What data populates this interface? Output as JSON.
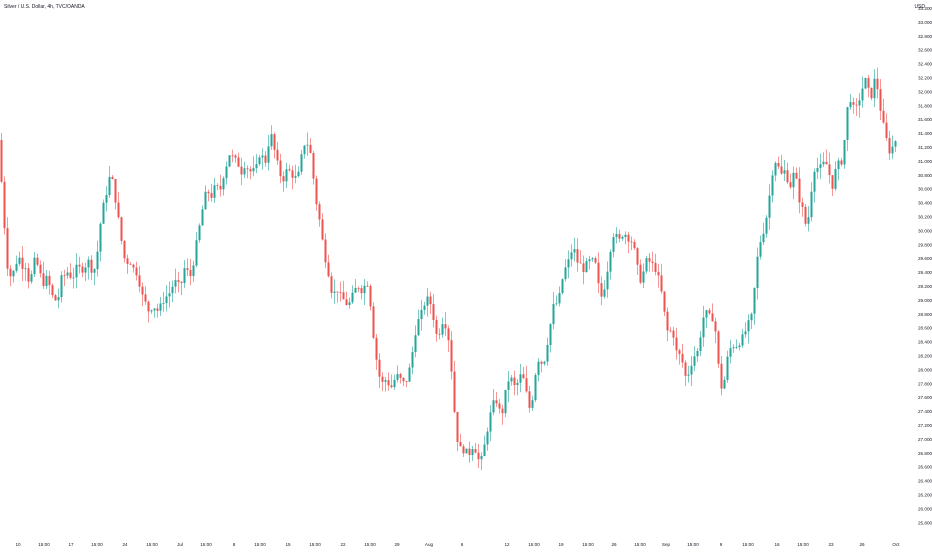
{
  "chart_data": {
    "type": "candlestick",
    "title": "Silver / U.S. Dollar, 4h, TVC/OANDA",
    "y_unit": "USD",
    "ylim": [
      26.0,
      33.2
    ],
    "yticks": [
      "33.200",
      "33.000",
      "32.800",
      "32.600",
      "32.400",
      "32.200",
      "32.000",
      "31.800",
      "31.600",
      "31.400",
      "31.200",
      "31.000",
      "30.800",
      "30.600",
      "30.400",
      "30.200",
      "30.000",
      "29.800",
      "29.600",
      "29.400",
      "29.200",
      "29.000",
      "28.800",
      "28.600",
      "28.400",
      "28.200",
      "28.000",
      "27.800",
      "27.600",
      "27.400",
      "27.200",
      "27.000",
      "26.800",
      "26.600",
      "26.400",
      "26.200",
      "26.000",
      "25.800"
    ],
    "xticks": [
      "10",
      "15:00",
      "17",
      "15:00",
      "24",
      "15:00",
      "Jul",
      "15:00",
      "8",
      "15:00",
      "15",
      "15:00",
      "22",
      "15:00",
      "29",
      "Aug",
      "6",
      "12",
      "15:00",
      "19",
      "15:00",
      "26",
      "15:00",
      "Sep",
      "15:00",
      "9",
      "15:00",
      "16",
      "15:00",
      "23",
      "26",
      "Oct"
    ],
    "grid": false,
    "legend": "none",
    "colors": {
      "up": "#26a69a",
      "down": "#ef5350",
      "axis_text": "#131722"
    },
    "close_path": [
      [
        0,
        31.3
      ],
      [
        2,
        30.5
      ],
      [
        6,
        29.8
      ],
      [
        9,
        29.2
      ],
      [
        12,
        29.5
      ],
      [
        15,
        29.3
      ],
      [
        18,
        29.8
      ],
      [
        21,
        29.4
      ],
      [
        24,
        29.6
      ],
      [
        27,
        29.4
      ],
      [
        30,
        29.2
      ],
      [
        33,
        29.5
      ],
      [
        36,
        29.6
      ],
      [
        39,
        29.4
      ],
      [
        42,
        29.3
      ],
      [
        45,
        29.2
      ],
      [
        48,
        29.4
      ],
      [
        51,
        29.0
      ],
      [
        54,
        29.1
      ],
      [
        57,
        28.9
      ],
      [
        60,
        29.2
      ],
      [
        63,
        29.4
      ],
      [
        66,
        29.3
      ],
      [
        69,
        29.5
      ],
      [
        72,
        29.2
      ],
      [
        75,
        29.5
      ],
      [
        78,
        29.4
      ],
      [
        81,
        29.5
      ],
      [
        84,
        29.4
      ],
      [
        87,
        29.6
      ],
      [
        90,
        29.5
      ],
      [
        93,
        29.4
      ],
      [
        96,
        29.5
      ],
      [
        99,
        29.9
      ],
      [
        102,
        30.3
      ],
      [
        105,
        30.4
      ],
      [
        108,
        30.7
      ],
      [
        111,
        30.8
      ],
      [
        114,
        30.6
      ],
      [
        117,
        30.3
      ],
      [
        120,
        30.0
      ],
      [
        123,
        29.7
      ],
      [
        126,
        29.5
      ],
      [
        129,
        29.6
      ],
      [
        132,
        29.5
      ],
      [
        135,
        29.4
      ],
      [
        138,
        29.4
      ],
      [
        141,
        29.1
      ],
      [
        144,
        29.0
      ],
      [
        147,
        28.9
      ],
      [
        150,
        28.8
      ],
      [
        153,
        29.0
      ],
      [
        156,
        28.8
      ],
      [
        159,
        28.9
      ],
      [
        162,
        28.9
      ],
      [
        165,
        29.1
      ],
      [
        168,
        29.0
      ],
      [
        171,
        29.2
      ],
      [
        174,
        29.2
      ],
      [
        177,
        29.3
      ],
      [
        180,
        29.1
      ],
      [
        183,
        29.4
      ],
      [
        186,
        29.5
      ],
      [
        189,
        29.3
      ],
      [
        192,
        29.4
      ],
      [
        195,
        29.7
      ],
      [
        198,
        29.9
      ],
      [
        201,
        30.2
      ],
      [
        204,
        30.4
      ],
      [
        207,
        30.6
      ],
      [
        210,
        30.5
      ],
      [
        213,
        30.5
      ],
      [
        216,
        30.7
      ],
      [
        219,
        30.5
      ],
      [
        222,
        30.7
      ],
      [
        225,
        30.9
      ],
      [
        228,
        31.0
      ],
      [
        231,
        31.2
      ],
      [
        234,
        30.9
      ],
      [
        237,
        31.1
      ],
      [
        240,
        30.8
      ],
      [
        243,
        30.9
      ],
      [
        246,
        31.0
      ],
      [
        249,
        30.8
      ],
      [
        252,
        30.9
      ],
      [
        255,
        30.8
      ],
      [
        258,
        31.0
      ],
      [
        261,
        31.2
      ],
      [
        264,
        30.9
      ],
      [
        267,
        31.1
      ],
      [
        270,
        31.4
      ],
      [
        273,
        31.3
      ],
      [
        276,
        31.0
      ],
      [
        279,
        30.9
      ],
      [
        282,
        30.7
      ],
      [
        285,
        30.8
      ],
      [
        288,
        30.9
      ],
      [
        291,
        30.8
      ],
      [
        294,
        30.8
      ],
      [
        297,
        30.7
      ],
      [
        300,
        30.9
      ],
      [
        303,
        31.2
      ],
      [
        306,
        31.3
      ],
      [
        309,
        31.2
      ],
      [
        312,
        31.0
      ],
      [
        315,
        30.5
      ],
      [
        318,
        30.3
      ],
      [
        321,
        30.0
      ],
      [
        324,
        29.7
      ],
      [
        327,
        29.5
      ],
      [
        330,
        29.3
      ],
      [
        333,
        29.0
      ],
      [
        336,
        29.2
      ],
      [
        339,
        29.1
      ],
      [
        342,
        29.0
      ],
      [
        345,
        29.0
      ],
      [
        348,
        28.9
      ],
      [
        351,
        29.0
      ],
      [
        354,
        29.1
      ],
      [
        357,
        29.2
      ],
      [
        360,
        29.2
      ],
      [
        363,
        29.1
      ],
      [
        366,
        29.3
      ],
      [
        369,
        29.2
      ],
      [
        372,
        28.7
      ],
      [
        375,
        28.3
      ],
      [
        378,
        28.0
      ],
      [
        381,
        27.8
      ],
      [
        384,
        27.8
      ],
      [
        387,
        27.9
      ],
      [
        390,
        27.7
      ],
      [
        393,
        27.8
      ],
      [
        396,
        27.9
      ],
      [
        399,
        27.9
      ],
      [
        402,
        27.8
      ],
      [
        405,
        27.8
      ],
      [
        408,
        27.9
      ],
      [
        411,
        28.1
      ],
      [
        414,
        28.4
      ],
      [
        417,
        28.7
      ],
      [
        420,
        28.7
      ],
      [
        423,
        28.9
      ],
      [
        426,
        29.0
      ],
      [
        429,
        29.0
      ],
      [
        432,
        28.9
      ],
      [
        435,
        28.6
      ],
      [
        438,
        28.4
      ],
      [
        441,
        28.7
      ],
      [
        444,
        28.7
      ],
      [
        447,
        28.6
      ],
      [
        450,
        28.3
      ],
      [
        453,
        27.7
      ],
      [
        456,
        27.1
      ],
      [
        459,
        26.9
      ],
      [
        462,
        26.8
      ],
      [
        465,
        26.9
      ],
      [
        468,
        26.7
      ],
      [
        471,
        26.9
      ],
      [
        474,
        26.9
      ],
      [
        477,
        26.8
      ],
      [
        480,
        26.6
      ],
      [
        483,
        26.8
      ],
      [
        486,
        27.0
      ],
      [
        489,
        27.3
      ],
      [
        492,
        27.4
      ],
      [
        495,
        27.6
      ],
      [
        498,
        27.5
      ],
      [
        501,
        27.3
      ],
      [
        504,
        27.5
      ],
      [
        507,
        27.8
      ],
      [
        510,
        27.9
      ],
      [
        513,
        27.8
      ],
      [
        516,
        27.7
      ],
      [
        519,
        27.9
      ],
      [
        522,
        27.9
      ],
      [
        525,
        27.8
      ],
      [
        528,
        27.5
      ],
      [
        531,
        27.4
      ],
      [
        534,
        27.8
      ],
      [
        537,
        28.1
      ],
      [
        540,
        28.2
      ],
      [
        543,
        28.0
      ],
      [
        546,
        28.3
      ],
      [
        549,
        28.5
      ],
      [
        552,
        28.8
      ],
      [
        555,
        29.0
      ],
      [
        558,
        28.9
      ],
      [
        561,
        29.2
      ],
      [
        564,
        29.4
      ],
      [
        567,
        29.5
      ],
      [
        570,
        29.6
      ],
      [
        573,
        29.8
      ],
      [
        576,
        29.6
      ],
      [
        579,
        29.5
      ],
      [
        582,
        29.5
      ],
      [
        585,
        29.4
      ],
      [
        588,
        29.6
      ],
      [
        591,
        29.5
      ],
      [
        594,
        29.6
      ],
      [
        597,
        29.4
      ],
      [
        600,
        29.0
      ],
      [
        603,
        29.1
      ],
      [
        606,
        29.3
      ],
      [
        609,
        29.6
      ],
      [
        612,
        29.9
      ],
      [
        615,
        30.0
      ],
      [
        618,
        29.8
      ],
      [
        621,
        29.9
      ],
      [
        624,
        30.0
      ],
      [
        627,
        29.9
      ],
      [
        630,
        29.9
      ],
      [
        633,
        29.8
      ],
      [
        636,
        29.6
      ],
      [
        639,
        29.3
      ],
      [
        642,
        29.3
      ],
      [
        645,
        29.5
      ],
      [
        648,
        29.6
      ],
      [
        651,
        29.5
      ],
      [
        654,
        29.5
      ],
      [
        657,
        29.4
      ],
      [
        660,
        29.2
      ],
      [
        663,
        29.0
      ],
      [
        666,
        28.6
      ],
      [
        669,
        28.5
      ],
      [
        672,
        28.6
      ],
      [
        675,
        28.4
      ],
      [
        678,
        28.1
      ],
      [
        681,
        28.3
      ],
      [
        684,
        27.9
      ],
      [
        687,
        27.9
      ],
      [
        690,
        28.0
      ],
      [
        693,
        28.2
      ],
      [
        696,
        28.2
      ],
      [
        699,
        28.3
      ],
      [
        702,
        28.7
      ],
      [
        705,
        28.8
      ],
      [
        708,
        28.8
      ],
      [
        711,
        28.7
      ],
      [
        714,
        28.8
      ],
      [
        717,
        28.3
      ],
      [
        720,
        27.8
      ],
      [
        723,
        27.7
      ],
      [
        726,
        28.0
      ],
      [
        729,
        28.3
      ],
      [
        732,
        28.3
      ],
      [
        735,
        28.4
      ],
      [
        738,
        28.3
      ],
      [
        741,
        28.5
      ],
      [
        744,
        28.4
      ],
      [
        747,
        28.7
      ],
      [
        750,
        28.6
      ],
      [
        753,
        28.9
      ],
      [
        756,
        29.4
      ],
      [
        759,
        29.8
      ],
      [
        762,
        29.9
      ],
      [
        765,
        30.1
      ],
      [
        768,
        30.3
      ],
      [
        771,
        30.7
      ],
      [
        774,
        31.0
      ],
      [
        777,
        31.0
      ],
      [
        780,
        30.8
      ],
      [
        783,
        30.8
      ],
      [
        786,
        30.9
      ],
      [
        789,
        30.6
      ],
      [
        792,
        30.7
      ],
      [
        795,
        30.9
      ],
      [
        798,
        30.5
      ],
      [
        801,
        30.4
      ],
      [
        804,
        30.2
      ],
      [
        807,
        30.0
      ],
      [
        810,
        30.4
      ],
      [
        813,
        30.8
      ],
      [
        816,
        31.0
      ],
      [
        819,
        30.8
      ],
      [
        822,
        31.0
      ],
      [
        825,
        30.9
      ],
      [
        828,
        31.0
      ],
      [
        831,
        30.6
      ],
      [
        834,
        30.7
      ],
      [
        837,
        31.0
      ],
      [
        840,
        30.9
      ],
      [
        843,
        31.1
      ],
      [
        846,
        31.5
      ],
      [
        849,
        32.0
      ],
      [
        852,
        31.8
      ],
      [
        855,
        31.7
      ],
      [
        858,
        31.8
      ],
      [
        861,
        32.0
      ],
      [
        864,
        32.1
      ],
      [
        867,
        32.2
      ],
      [
        870,
        31.8
      ],
      [
        873,
        32.1
      ],
      [
        876,
        32.2
      ],
      [
        879,
        31.9
      ],
      [
        882,
        31.6
      ],
      [
        885,
        31.4
      ],
      [
        888,
        31.2
      ],
      [
        891,
        31.1
      ],
      [
        894,
        31.3
      ],
      [
        897,
        31.3
      ]
    ]
  }
}
